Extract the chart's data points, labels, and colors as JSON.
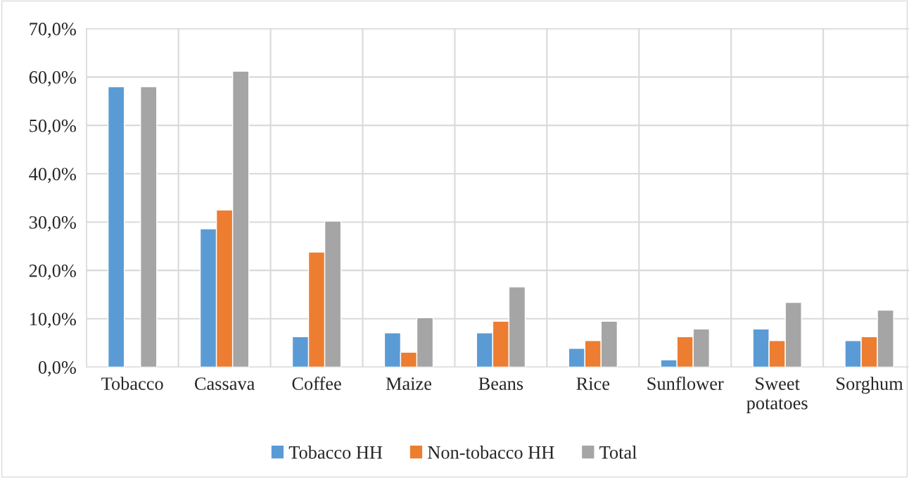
{
  "chart_data": {
    "type": "bar",
    "categories": [
      "Tobacco",
      "Cassava",
      "Coffee",
      "Maize",
      "Beans",
      "Rice",
      "Sunflower",
      "Sweet potatoes",
      "Sorghum"
    ],
    "series": [
      {
        "name": "Tobacco HH",
        "color": "#5b9bd5",
        "values": [
          58.0,
          28.6,
          6.3,
          7.1,
          7.1,
          3.9,
          1.5,
          7.9,
          5.5
        ]
      },
      {
        "name": "Non-tobacco HH",
        "color": "#ed7d31",
        "values": [
          null,
          32.5,
          23.8,
          3.1,
          9.5,
          5.5,
          6.3,
          5.5,
          6.3
        ]
      },
      {
        "name": "Total",
        "color": "#a5a5a5",
        "values": [
          58.0,
          61.2,
          30.2,
          10.2,
          16.6,
          9.5,
          7.9,
          13.4,
          11.8
        ]
      }
    ],
    "ylim": [
      0,
      70
    ],
    "yticks": [
      {
        "value": 0,
        "label": "0,0%"
      },
      {
        "value": 10,
        "label": "10,0%"
      },
      {
        "value": 20,
        "label": "20,0%"
      },
      {
        "value": 30,
        "label": "30,0%"
      },
      {
        "value": 40,
        "label": "40,0%"
      },
      {
        "value": 50,
        "label": "50,0%"
      },
      {
        "value": 60,
        "label": "60,0%"
      },
      {
        "value": 70,
        "label": "70,0%"
      }
    ],
    "grid": true,
    "legend": "bottom"
  }
}
